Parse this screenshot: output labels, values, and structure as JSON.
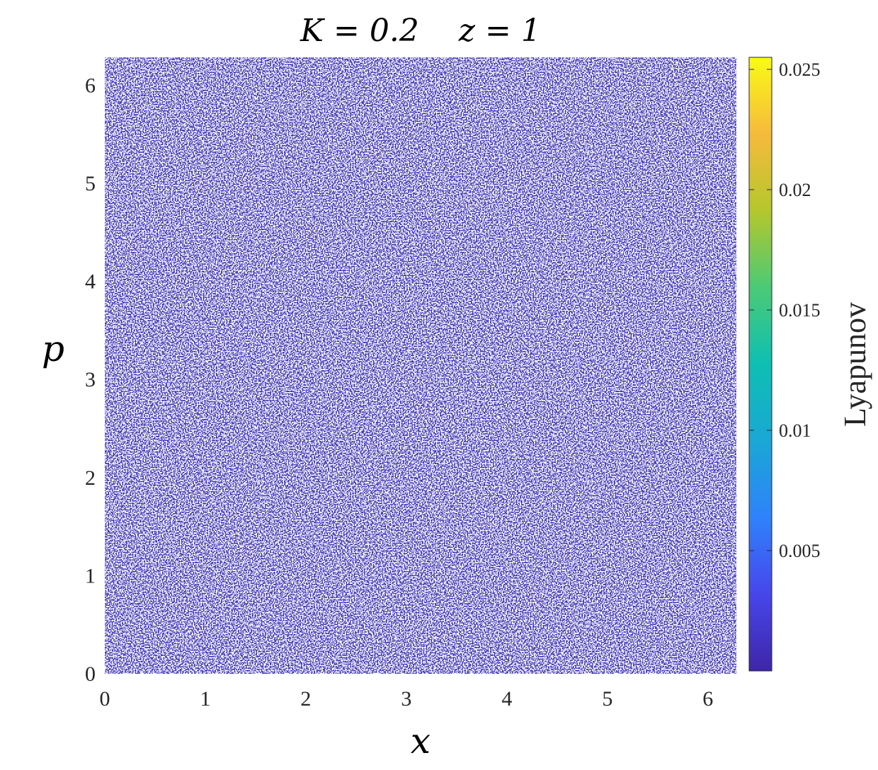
{
  "chart_data": {
    "type": "scatter",
    "title": "K = 0.2    z = 1",
    "xlabel": "x",
    "ylabel": "p",
    "xlim": [
      0,
      6.2832
    ],
    "ylim": [
      0,
      6.2832
    ],
    "xticks": [
      "0",
      "1",
      "2",
      "3",
      "4",
      "5",
      "6"
    ],
    "yticks": [
      "0",
      "1",
      "2",
      "3",
      "4",
      "5",
      "6"
    ],
    "grid": false,
    "marker_color": "#3a2fb2",
    "colorbar": {
      "label": "Lyapunov",
      "range": [
        0,
        0.0255
      ],
      "ticks": [
        "0.005",
        "0.01",
        "0.015",
        "0.02",
        "0.025"
      ],
      "colormap": "parula",
      "colors": [
        "#3e26a8",
        "#4746eb",
        "#2f82fb",
        "#1aa7d5",
        "#0ebfb3",
        "#4bca76",
        "#b5c72c",
        "#f6ba3c",
        "#f9fb15"
      ]
    },
    "description_values": "Phase-space points uniformly cover [0, 2π]×[0, 2π]; nearly all have Lyapunov ≈ 0"
  }
}
